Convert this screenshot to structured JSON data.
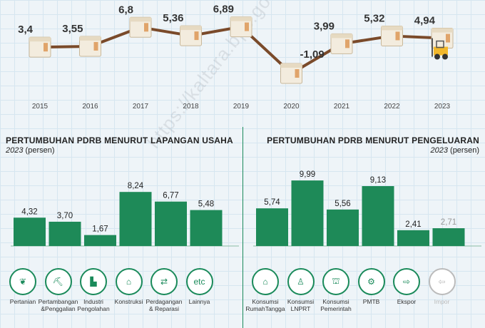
{
  "colors": {
    "bar": "#1e8a58",
    "line": "#7a4a2a",
    "accent": "#1a8a5a"
  },
  "chart_data": [
    {
      "type": "line",
      "x": [
        "2015",
        "2016",
        "2017",
        "2018",
        "2019",
        "2020",
        "2021",
        "2022",
        "2023"
      ],
      "values": [
        3.4,
        3.55,
        6.8,
        5.36,
        6.89,
        -1.09,
        3.99,
        5.32,
        4.94
      ],
      "labels": [
        "3,4",
        "3,55",
        "6,8",
        "5,36",
        "6,89",
        "-1,09",
        "3,99",
        "5,32",
        "4,94"
      ]
    },
    {
      "type": "bar",
      "title": "PERTUMBUHAN PDRB MENURUT LAPANGAN USAHA",
      "subtitle_year": "2023",
      "subtitle_unit": "(persen)",
      "categories": [
        "Pertanian",
        "Pertambangan &Penggalian",
        "Industri Pengolahan",
        "Konstruksi",
        "Perdagangan & Reparasi",
        "Lainnya"
      ],
      "values": [
        4.32,
        3.7,
        1.67,
        8.24,
        6.77,
        5.48
      ],
      "labels": [
        "4,32",
        "3,70",
        "1,67",
        "8,24",
        "6,77",
        "5,48"
      ]
    },
    {
      "type": "bar",
      "title": "PERTUMBUHAN PDRB MENURUT PENGELUARAN",
      "subtitle_year": "2023",
      "subtitle_unit": "(persen)",
      "categories": [
        "Konsumsi RumahTangga",
        "Konsumsi LNPRT",
        "Konsumsi Pemerintah",
        "PMTB",
        "Ekspor",
        "Impor"
      ],
      "values": [
        5.74,
        9.99,
        5.56,
        9.13,
        2.41,
        2.71
      ],
      "labels": [
        "5,74",
        "9,99",
        "5,56",
        "9,13",
        "2,41",
        "2,71"
      ]
    }
  ],
  "left_icons": [
    {
      "label1": "Pertanian",
      "label2": "",
      "icon": "leaf-icon",
      "glyph": "❦"
    },
    {
      "label1": "Pertambangan",
      "label2": "&Penggalian",
      "icon": "oil-pump-icon",
      "glyph": "⛏"
    },
    {
      "label1": "Industri",
      "label2": "Pengolahan",
      "icon": "factory-icon",
      "glyph": "▙"
    },
    {
      "label1": "Konstruksi",
      "label2": "",
      "icon": "crane-icon",
      "glyph": "⌂"
    },
    {
      "label1": "Perdagangan",
      "label2": "& Reparasi",
      "icon": "car-trade-icon",
      "glyph": "⇄"
    },
    {
      "label1": "Lainnya",
      "label2": "",
      "icon": "etc-icon",
      "glyph": "etc"
    }
  ],
  "right_icons": [
    {
      "label1": "Konsumsi",
      "label2": "RumahTangga",
      "icon": "household-icon",
      "glyph": "⌂"
    },
    {
      "label1": "Konsumsi",
      "label2": "LNPRT",
      "icon": "person-icon",
      "glyph": "♙"
    },
    {
      "label1": "Konsumsi",
      "label2": "Pemerintah",
      "icon": "government-building-icon",
      "glyph": "⛫"
    },
    {
      "label1": "PMTB",
      "label2": "",
      "icon": "robot-arm-icon",
      "glyph": "⚙"
    },
    {
      "label1": "Ekspor",
      "label2": "",
      "icon": "export-ship-icon",
      "glyph": "⇨"
    },
    {
      "label1": "Impor",
      "label2": "",
      "icon": "import-ship-icon",
      "glyph": "⇦"
    }
  ],
  "watermark": "https://kaltara.bps.go.id"
}
